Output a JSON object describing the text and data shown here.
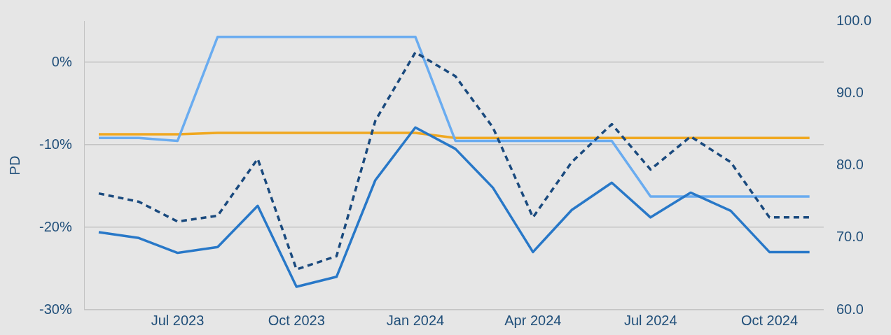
{
  "chart_data": {
    "type": "line",
    "ylabel": "PD",
    "x": [
      "2023-05",
      "2023-06",
      "2023-07",
      "2023-08",
      "2023-09",
      "2023-10",
      "2023-11",
      "2023-12",
      "2024-01",
      "2024-02",
      "2024-03",
      "2024-04",
      "2024-05",
      "2024-06",
      "2024-07",
      "2024-08",
      "2024-09",
      "2024-10",
      "2024-11"
    ],
    "series": [
      {
        "color": "#2878c8",
        "line_style": "solid",
        "values": [
          -20.6,
          -21.3,
          -23.1,
          -22.4,
          -17.4,
          -27.2,
          -26.0,
          -14.3,
          -7.9,
          -10.5,
          -15.2,
          -23.0,
          -17.9,
          -14.6,
          -18.8,
          -15.8,
          -18.0,
          -23.0,
          -23.0
        ]
      },
      {
        "color": "#1a4a7e",
        "line_style": "dashed",
        "values": [
          -15.9,
          -16.9,
          -19.3,
          -18.6,
          -11.7,
          -25.1,
          -23.5,
          -7.1,
          1.2,
          -1.7,
          -7.9,
          -18.8,
          -12.1,
          -7.5,
          -13.0,
          -9.0,
          -12.1,
          -18.8,
          -18.8
        ]
      },
      {
        "color": "#6aacf0",
        "line_style": "solid",
        "axis": "y2",
        "values": [
          83.8,
          83.8,
          83.4,
          97.8,
          97.8,
          97.8,
          97.8,
          97.8,
          97.8,
          83.4,
          83.4,
          83.4,
          83.4,
          83.4,
          75.7,
          75.7,
          75.7,
          75.7,
          75.7
        ]
      },
      {
        "color": "#f0a820",
        "line_style": "solid",
        "axis": "y2",
        "values": [
          84.3,
          84.3,
          84.3,
          84.5,
          84.5,
          84.5,
          84.5,
          84.5,
          84.5,
          83.8,
          83.8,
          83.8,
          83.8,
          83.8,
          83.8,
          83.8,
          83.8,
          83.8,
          83.8
        ]
      }
    ],
    "xlim": [
      "2023-04-20",
      "2024-11-12"
    ],
    "xticks": [
      {
        "value": "2023-07",
        "label": "Jul 2023"
      },
      {
        "value": "2023-10",
        "label": "Oct 2023"
      },
      {
        "value": "2024-01",
        "label": "Jan 2024"
      },
      {
        "value": "2024-04",
        "label": "Apr 2024"
      },
      {
        "value": "2024-07",
        "label": "Jul 2024"
      },
      {
        "value": "2024-10",
        "label": "Oct 2024"
      }
    ],
    "ylim": [
      -30,
      5
    ],
    "yticks": [
      {
        "value": -30,
        "label": "-30%"
      },
      {
        "value": -20,
        "label": "-20%"
      },
      {
        "value": -10,
        "label": "-10%"
      },
      {
        "value": 0,
        "label": "0%"
      }
    ],
    "y2lim": [
      60,
      100
    ],
    "y2ticks": [
      {
        "value": 60,
        "label": "60.0"
      },
      {
        "value": 70,
        "label": "70.0"
      },
      {
        "value": 80,
        "label": "80.0"
      },
      {
        "value": 90,
        "label": "90.0"
      },
      {
        "value": 100,
        "label": "100.0"
      }
    ],
    "grid": "y",
    "legend": false,
    "marker": "none"
  }
}
